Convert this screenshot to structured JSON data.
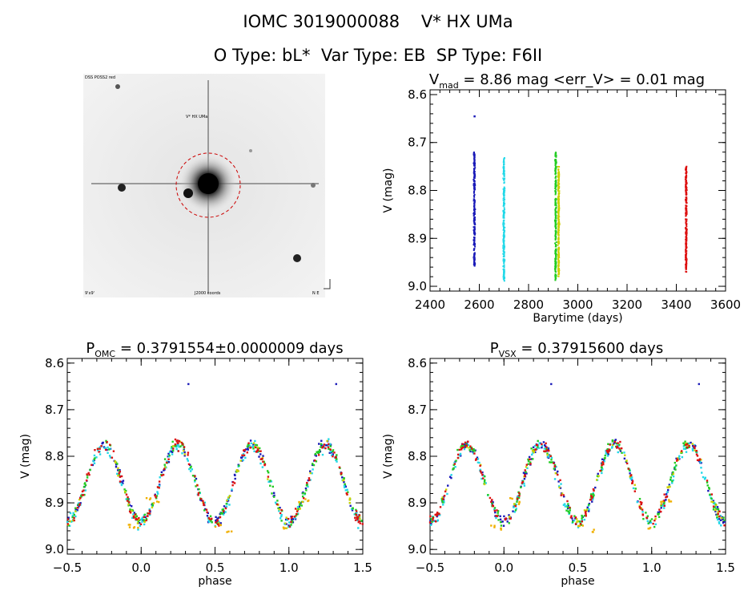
{
  "header": {
    "title_line1": "IOMC 3019000088    V* HX UMa",
    "title_line2": "O Type: bL*  Var Type: EB  SP Type: F6II"
  },
  "finder_image": {
    "label_top_left": "DSS POSS2 red",
    "label_target": "V* HX UMa",
    "label_bottom_left": "9'x9'",
    "label_bottom_center": "J2000 coords",
    "label_bottom_right": "N E",
    "circle_color": "#cc0000"
  },
  "colors": {
    "series": [
      "#1a1ab8",
      "#22d8e8",
      "#22cc22",
      "#ccd000",
      "#f0b000",
      "#dd1111"
    ]
  },
  "chart_data": [
    {
      "id": "lightcurve",
      "type": "scatter",
      "title_main": "V",
      "title_sub": "mad",
      "title_rest": " = 8.86 mag <err_V> = 0.01 mag",
      "xlabel": "Barytime (days)",
      "ylabel": "V (mag)",
      "xlim": [
        2400,
        3600
      ],
      "ylim": [
        9.01,
        8.59
      ],
      "xticks": [
        2400,
        2600,
        2800,
        3000,
        3200,
        3400,
        3600
      ],
      "yticks": [
        8.6,
        8.7,
        8.8,
        8.9,
        9.0
      ],
      "series": [
        {
          "color": "#1a1ab8",
          "x_center": 2580,
          "y_range": [
            8.72,
            8.96
          ],
          "outlier": 8.645
        },
        {
          "color": "#22d8e8",
          "x_center": 2700,
          "y_range": [
            8.73,
            8.99
          ]
        },
        {
          "color": "#22cc22",
          "x_center": 2910,
          "y_range": [
            8.72,
            8.99
          ]
        },
        {
          "color": "#ccd000",
          "x_center": 2922,
          "y_range": [
            8.75,
            8.98
          ]
        },
        {
          "color": "#dd1111",
          "x_center": 3440,
          "y_range": [
            8.75,
            8.97
          ]
        }
      ]
    },
    {
      "id": "phase_omc",
      "type": "scatter",
      "title_main": "P",
      "title_sub": "OMC",
      "title_rest": " = 0.3791554±0.0000009 days",
      "xlabel": "phase",
      "ylabel": "V (mag)",
      "xlim": [
        -0.5,
        1.5
      ],
      "ylim": [
        9.01,
        8.59
      ],
      "xticks": [
        -0.5,
        0.0,
        0.5,
        1.0,
        1.5
      ],
      "xtick_labels": [
        "−0.5",
        "0.0",
        "0.5",
        "1.0",
        "1.5"
      ],
      "yticks": [
        8.6,
        8.7,
        8.8,
        8.9,
        9.0
      ],
      "model": {
        "period_phase": 0.5,
        "max_phase": -0.25,
        "v_bright": 8.775,
        "v_faint": 8.94
      },
      "outliers": [
        [
          0.32,
          8.645
        ],
        [
          1.32,
          8.645
        ]
      ]
    },
    {
      "id": "phase_vsx",
      "type": "scatter",
      "title_main": "P",
      "title_sub": "VSX",
      "title_rest": " = 0.37915600 days",
      "xlabel": "phase",
      "ylabel": "V (mag)",
      "xlim": [
        -0.5,
        1.5
      ],
      "ylim": [
        9.01,
        8.59
      ],
      "xticks": [
        -0.5,
        0.0,
        0.5,
        1.0,
        1.5
      ],
      "xtick_labels": [
        "−0.5",
        "0.0",
        "0.5",
        "1.0",
        "1.5"
      ],
      "yticks": [
        8.6,
        8.7,
        8.8,
        8.9,
        9.0
      ],
      "model": {
        "period_phase": 0.5,
        "max_phase": -0.25,
        "v_bright": 8.775,
        "v_faint": 8.94
      },
      "outliers": [
        [
          0.32,
          8.645
        ],
        [
          1.32,
          8.645
        ]
      ]
    }
  ]
}
